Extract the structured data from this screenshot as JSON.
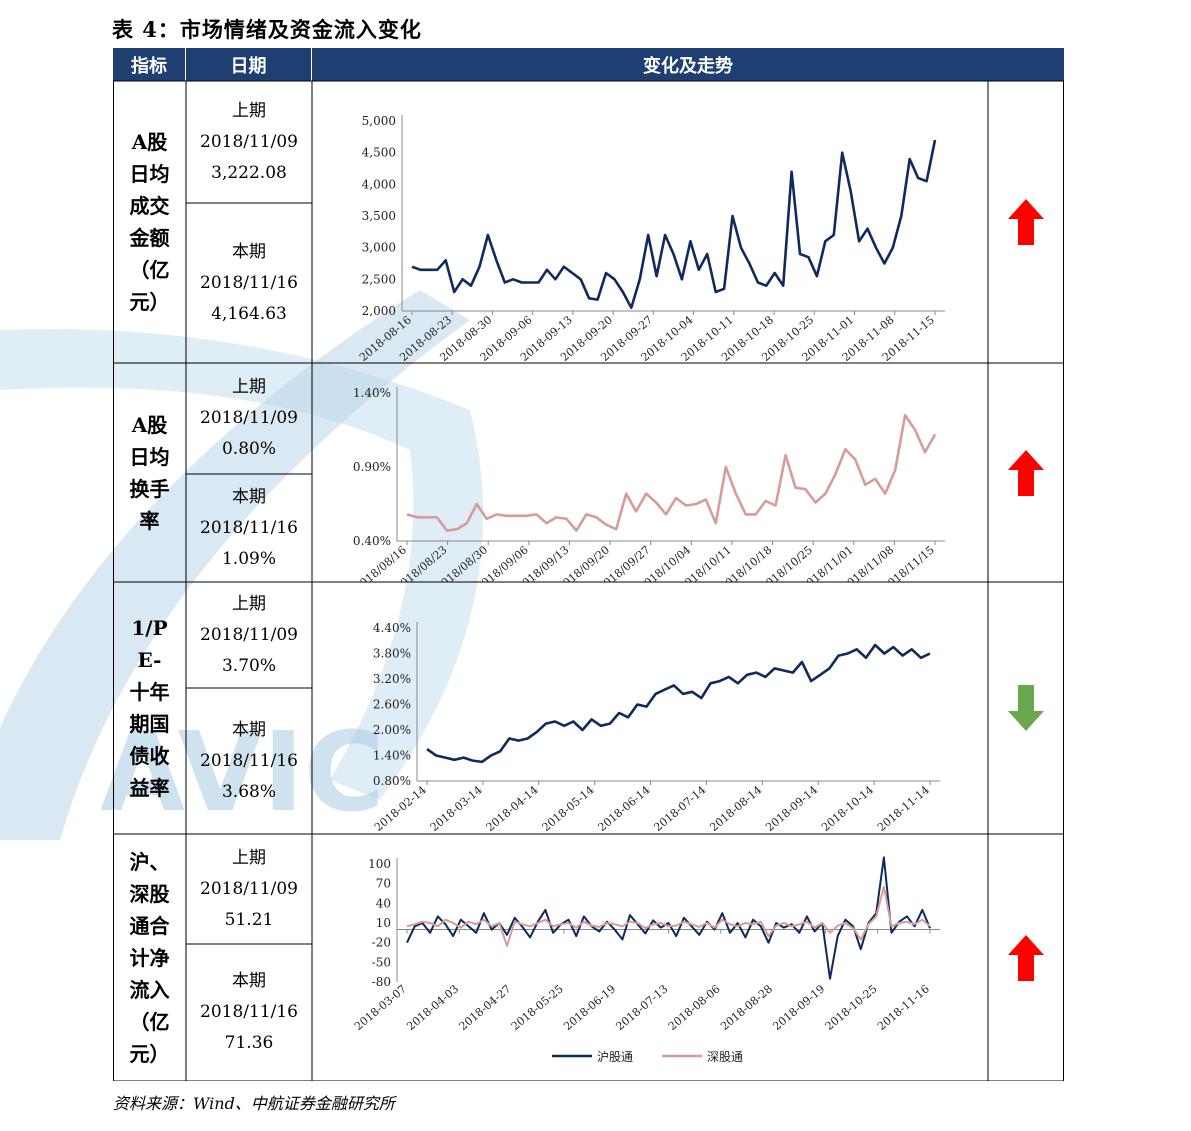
{
  "title": "表 4：市场情绪及资金流入变化",
  "headers": {
    "indicator": "指标",
    "date": "日期",
    "trend": "变化及走势"
  },
  "watermark": "AVIC",
  "colors": {
    "header_bg": "#1f3f73",
    "navy": "#0f2a5c",
    "pink": "#d99a9a",
    "up": "#ff0000",
    "down": "#6aa84f"
  },
  "rows": [
    {
      "indicator": "A股日均成交金额（亿元）",
      "prev_label": "上期",
      "prev_date": "2018/11/09",
      "prev_value": "3,222.08",
      "curr_label": "本期",
      "curr_date": "2018/11/16",
      "curr_value": "4,164.63",
      "trend": "up"
    },
    {
      "indicator": "A股日均换手率",
      "prev_label": "上期",
      "prev_date": "2018/11/09",
      "prev_value": "0.80%",
      "curr_label": "本期",
      "curr_date": "2018/11/16",
      "curr_value": "1.09%",
      "trend": "up"
    },
    {
      "indicator": "1/PE-十年期国债收益率",
      "prev_label": "上期",
      "prev_date": "2018/11/09",
      "prev_value": "3.70%",
      "curr_label": "本期",
      "curr_date": "2018/11/16",
      "curr_value": "3.68%",
      "trend": "down"
    },
    {
      "indicator": "沪、深股通合计净流入（亿元）",
      "prev_label": "上期",
      "prev_date": "2018/11/09",
      "prev_value": "51.21",
      "curr_label": "本期",
      "curr_date": "2018/11/16",
      "curr_value": "71.36",
      "trend": "up"
    }
  ],
  "source": "资料来源：Wind、中航证券金融研究所",
  "chart_data": [
    {
      "type": "line",
      "yticks": [
        "5,000",
        "4,500",
        "4,000",
        "3,500",
        "3,000",
        "2,500",
        "2,000"
      ],
      "ylim": [
        2000,
        5000
      ],
      "xticks": [
        "2018-08-16",
        "2018-08-23",
        "2018-08-30",
        "2018-09-06",
        "2018-09-13",
        "2018-09-20",
        "2018-09-27",
        "2018-10-04",
        "2018-10-11",
        "2018-10-18",
        "2018-10-25",
        "2018-11-01",
        "2018-11-08",
        "2018-11-15"
      ],
      "series": [
        {
          "name": "",
          "color": "#0f2a5c",
          "values": [
            2700,
            2650,
            2650,
            2650,
            2800,
            2300,
            2500,
            2400,
            2700,
            3200,
            2800,
            2450,
            2500,
            2450,
            2450,
            2450,
            2650,
            2500,
            2700,
            2600,
            2500,
            2200,
            2180,
            2600,
            2500,
            2300,
            2050,
            2500,
            3200,
            2550,
            3200,
            2900,
            2500,
            3100,
            2650,
            2900,
            2300,
            2350,
            3500,
            3000,
            2750,
            2450,
            2400,
            2600,
            2400,
            4200,
            2900,
            2850,
            2550,
            3100,
            3200,
            4500,
            3900,
            3100,
            3300,
            3000,
            2750,
            3000,
            3500,
            4400,
            4100,
            4050,
            4700
          ]
        }
      ]
    },
    {
      "type": "line",
      "yticks": [
        "1.40%",
        "0.90%",
        "0.40%"
      ],
      "ylim": [
        0.4,
        1.4
      ],
      "xticks": [
        "2018/08/16",
        "2018/08/23",
        "2018/08/30",
        "2018/09/06",
        "2018/09/13",
        "2018/09/20",
        "2018/09/27",
        "2018/10/04",
        "2018/10/11",
        "2018/10/18",
        "2018/10/25",
        "2018/11/01",
        "2018/11/08",
        "2018/11/15"
      ],
      "series": [
        {
          "name": "",
          "color": "#d99a9a",
          "values": [
            0.58,
            0.56,
            0.56,
            0.56,
            0.47,
            0.48,
            0.52,
            0.65,
            0.55,
            0.58,
            0.57,
            0.57,
            0.57,
            0.58,
            0.52,
            0.56,
            0.55,
            0.47,
            0.58,
            0.56,
            0.51,
            0.48,
            0.72,
            0.6,
            0.72,
            0.66,
            0.58,
            0.69,
            0.64,
            0.65,
            0.68,
            0.52,
            0.9,
            0.72,
            0.58,
            0.58,
            0.67,
            0.64,
            0.98,
            0.76,
            0.75,
            0.66,
            0.72,
            0.85,
            1.02,
            0.95,
            0.78,
            0.82,
            0.72,
            0.88,
            1.25,
            1.15,
            1.0,
            1.12
          ]
        }
      ]
    },
    {
      "type": "line",
      "yticks": [
        "4.40%",
        "3.80%",
        "3.20%",
        "2.60%",
        "2.00%",
        "1.40%",
        "0.80%"
      ],
      "ylim": [
        0.8,
        4.4
      ],
      "xticks": [
        "2018-02-14",
        "2018-03-14",
        "2018-04-14",
        "2018-05-14",
        "2018-06-14",
        "2018-07-14",
        "2018-08-14",
        "2018-09-14",
        "2018-10-14",
        "2018-11-14"
      ],
      "series": [
        {
          "name": "",
          "color": "#0f2a5c",
          "values": [
            1.55,
            1.4,
            1.35,
            1.3,
            1.35,
            1.28,
            1.25,
            1.4,
            1.5,
            1.8,
            1.75,
            1.8,
            1.95,
            2.15,
            2.2,
            2.1,
            2.2,
            2.0,
            2.25,
            2.1,
            2.15,
            2.4,
            2.3,
            2.6,
            2.55,
            2.85,
            2.95,
            3.05,
            2.85,
            2.9,
            2.75,
            3.1,
            3.15,
            3.25,
            3.1,
            3.3,
            3.35,
            3.25,
            3.45,
            3.4,
            3.35,
            3.6,
            3.15,
            3.3,
            3.45,
            3.75,
            3.8,
            3.9,
            3.7,
            4.0,
            3.8,
            3.95,
            3.75,
            3.9,
            3.7,
            3.8
          ]
        }
      ]
    },
    {
      "type": "line",
      "yticks": [
        "100",
        "70",
        "40",
        "10",
        "-20",
        "-50",
        "-80"
      ],
      "ylim": [
        -80,
        100
      ],
      "xticks": [
        "2018-03-07",
        "2018-04-03",
        "2018-04-27",
        "2018-05-25",
        "2018-06-19",
        "2018-07-13",
        "2018-08-06",
        "2018-08-28",
        "2018-09-19",
        "2018-10-25",
        "2018-11-16"
      ],
      "series": [
        {
          "name": "沪股通",
          "color": "#0f2a5c",
          "values": [
            -20,
            5,
            10,
            -5,
            20,
            8,
            -10,
            15,
            5,
            -5,
            25,
            0,
            10,
            -8,
            18,
            4,
            -12,
            12,
            30,
            -5,
            8,
            15,
            -10,
            20,
            5,
            -3,
            12,
            0,
            -15,
            22,
            8,
            -6,
            14,
            3,
            10,
            -10,
            18,
            5,
            -8,
            12,
            0,
            25,
            -5,
            10,
            -12,
            15,
            5,
            -20,
            10,
            3,
            8,
            -5,
            20,
            -3,
            10,
            -75,
            -10,
            15,
            5,
            -30,
            10,
            25,
            110,
            -5,
            12,
            20,
            5,
            30,
            2
          ]
        },
        {
          "name": "深股通",
          "color": "#d99a9a",
          "values": [
            5,
            8,
            12,
            10,
            5,
            15,
            10,
            3,
            12,
            8,
            15,
            5,
            10,
            -25,
            12,
            8,
            5,
            10,
            15,
            5,
            8,
            10,
            3,
            12,
            6,
            4,
            10,
            8,
            5,
            12,
            10,
            2,
            8,
            10,
            5,
            6,
            12,
            8,
            4,
            10,
            3,
            15,
            8,
            5,
            10,
            8,
            12,
            -10,
            6,
            10,
            5,
            8,
            12,
            3,
            10,
            -5,
            6,
            10,
            2,
            -15,
            8,
            20,
            65,
            5,
            10,
            12,
            8,
            15,
            5
          ]
        }
      ],
      "legend": "bottom"
    }
  ]
}
